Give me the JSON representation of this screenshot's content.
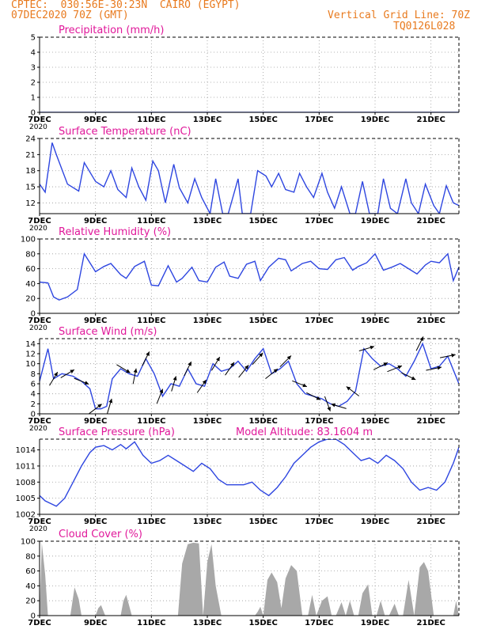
{
  "header": {
    "line1": "CPTEC:  030:56E-30:23N  CAIRO (EGYPT)",
    "line2": "07DEC2020 70Z (GMT)",
    "right1": "Vertical Grid Line: 70Z",
    "right2": "TQ0126L028"
  },
  "colors": {
    "header": "#e87a1e",
    "title": "#e0189a",
    "line": "#2e46e0",
    "cloud": "#a8a8a8",
    "axis": "#000000",
    "grid": "#9a9a9a",
    "arrow": "#000000"
  },
  "x_axis": {
    "range": [
      0,
      15
    ],
    "tick_labels": [
      "7DEC",
      "9DEC",
      "11DEC",
      "13DEC",
      "15DEC",
      "17DEC",
      "19DEC",
      "21DEC"
    ],
    "tick_days": [
      0,
      2,
      4,
      6,
      8,
      10,
      12,
      14
    ],
    "cutoff_label": "2020"
  },
  "chart_data": [
    {
      "type": "line",
      "title": "Precipitation (mm/h)",
      "ylim": [
        0,
        5
      ],
      "yticks": [
        0,
        1,
        2,
        3,
        4,
        5
      ],
      "grid": true,
      "x_days": [
        0,
        3,
        6,
        9,
        12,
        15
      ],
      "values": [
        0,
        0,
        0,
        0,
        0,
        0
      ]
    },
    {
      "type": "line",
      "title": "Surface Temperature (nC)",
      "ylim": [
        10,
        24
      ],
      "yticks": [
        12,
        15,
        18,
        21,
        24
      ],
      "grid": true,
      "x_days": [
        0,
        0.2,
        0.45,
        0.6,
        1.0,
        1.4,
        1.6,
        2.0,
        2.3,
        2.55,
        2.8,
        3.1,
        3.3,
        3.55,
        3.8,
        4.05,
        4.25,
        4.5,
        4.8,
        5.0,
        5.3,
        5.55,
        5.8,
        6.1,
        6.3,
        6.55,
        6.75,
        7.1,
        7.25,
        7.55,
        7.8,
        8.1,
        8.3,
        8.55,
        8.8,
        9.1,
        9.3,
        9.55,
        9.8,
        10.1,
        10.3,
        10.55,
        10.8,
        11.1,
        11.3,
        11.55,
        11.8,
        12.1,
        12.3,
        12.55,
        12.8,
        13.1,
        13.3,
        13.55,
        13.8,
        14.1,
        14.3,
        14.55,
        14.8,
        15.0
      ],
      "values": [
        15.5,
        14.0,
        23.2,
        21.0,
        15.5,
        14.2,
        19.5,
        16.0,
        15.0,
        18.0,
        14.5,
        13.0,
        18.5,
        15.0,
        12.5,
        19.8,
        18.0,
        12.0,
        19.2,
        14.8,
        12.0,
        16.5,
        13.0,
        10.0,
        16.5,
        10.0,
        10.0,
        16.5,
        10.0,
        10.0,
        18.0,
        17.0,
        15.0,
        17.5,
        14.5,
        14.0,
        17.5,
        15.0,
        13.0,
        17.5,
        14.0,
        11.0,
        15.0,
        10.0,
        10.0,
        16.0,
        10.0,
        10.0,
        16.5,
        11.0,
        10.0,
        16.5,
        12.0,
        10.0,
        15.5,
        11.5,
        10.0,
        15.2,
        12.0,
        11.5
      ]
    },
    {
      "type": "line",
      "title": "Relative Humidity (%)",
      "ylim": [
        0,
        100
      ],
      "yticks": [
        0,
        20,
        40,
        60,
        80,
        100
      ],
      "grid": true,
      "x_days": [
        0,
        0.3,
        0.5,
        0.7,
        1.0,
        1.35,
        1.6,
        2.0,
        2.3,
        2.55,
        2.9,
        3.1,
        3.4,
        3.75,
        4.0,
        4.25,
        4.6,
        4.9,
        5.1,
        5.45,
        5.7,
        6.0,
        6.3,
        6.6,
        6.8,
        7.1,
        7.4,
        7.7,
        7.9,
        8.2,
        8.55,
        8.8,
        9.0,
        9.4,
        9.7,
        10.0,
        10.3,
        10.6,
        10.9,
        11.2,
        11.4,
        11.7,
        12.0,
        12.3,
        12.6,
        12.9,
        13.2,
        13.5,
        13.8,
        14.0,
        14.3,
        14.6,
        14.8,
        15.0
      ],
      "values": [
        42,
        41,
        22,
        18,
        22,
        32,
        80,
        56,
        63,
        67,
        52,
        47,
        63,
        70,
        38,
        37,
        64,
        42,
        47,
        62,
        44,
        42,
        62,
        69,
        50,
        47,
        66,
        70,
        44,
        62,
        74,
        72,
        57,
        67,
        70,
        60,
        59,
        72,
        75,
        58,
        63,
        68,
        80,
        58,
        62,
        67,
        60,
        53,
        65,
        70,
        68,
        80,
        44,
        62
      ]
    },
    {
      "type": "line",
      "title": "Surface Wind (m/s)",
      "ylim": [
        0,
        15
      ],
      "yticks": [
        0,
        2,
        4,
        6,
        8,
        10,
        12,
        14
      ],
      "grid": true,
      "x_days": [
        0,
        0.3,
        0.5,
        0.8,
        1.2,
        1.5,
        1.8,
        2.0,
        2.2,
        2.4,
        2.6,
        2.9,
        3.2,
        3.5,
        3.8,
        4.1,
        4.4,
        4.7,
        5.0,
        5.3,
        5.6,
        5.9,
        6.2,
        6.5,
        6.8,
        7.1,
        7.4,
        7.7,
        8.0,
        8.3,
        8.6,
        8.9,
        9.2,
        9.5,
        9.8,
        10.1,
        10.4,
        10.7,
        11.0,
        11.3,
        11.6,
        11.9,
        12.2,
        12.5,
        12.8,
        13.1,
        13.4,
        13.7,
        14.0,
        14.3,
        14.6,
        15.0
      ],
      "values": [
        6.5,
        13.0,
        7.0,
        8.0,
        7.5,
        6.5,
        5.0,
        1.0,
        1.0,
        1.5,
        7.0,
        9.0,
        8.0,
        7.5,
        11.0,
        8.0,
        3.5,
        6.0,
        5.5,
        9.0,
        6.0,
        5.5,
        10.0,
        8.5,
        9.0,
        10.5,
        8.5,
        11.0,
        13.0,
        8.0,
        9.0,
        10.5,
        6.0,
        4.0,
        3.5,
        3.0,
        2.0,
        1.5,
        2.5,
        4.5,
        13.0,
        11.0,
        9.5,
        10.0,
        9.0,
        7.5,
        10.5,
        14.0,
        9.0,
        9.5,
        11.5,
        6.0
      ],
      "arrows": [
        {
          "day": 0.5,
          "dir": [
            0.6,
            -1.0
          ]
        },
        {
          "day": 1.0,
          "dir": [
            1.0,
            -0.6
          ]
        },
        {
          "day": 1.5,
          "dir": [
            1.0,
            0.4
          ]
        },
        {
          "day": 2.0,
          "dir": [
            0.8,
            -0.6
          ]
        },
        {
          "day": 2.5,
          "dir": [
            0.3,
            -1.0
          ]
        },
        {
          "day": 3.0,
          "dir": [
            1.0,
            0.6
          ]
        },
        {
          "day": 3.4,
          "dir": [
            0.2,
            -1.0
          ]
        },
        {
          "day": 3.8,
          "dir": [
            0.5,
            -1.0
          ]
        },
        {
          "day": 4.3,
          "dir": [
            0.4,
            -1.0
          ]
        },
        {
          "day": 4.8,
          "dir": [
            0.3,
            -1.0
          ]
        },
        {
          "day": 5.3,
          "dir": [
            0.5,
            -1.0
          ]
        },
        {
          "day": 5.8,
          "dir": [
            0.7,
            -1.0
          ]
        },
        {
          "day": 6.3,
          "dir": [
            0.6,
            -1.0
          ]
        },
        {
          "day": 6.8,
          "dir": [
            0.7,
            -1.0
          ]
        },
        {
          "day": 7.3,
          "dir": [
            0.8,
            -1.0
          ]
        },
        {
          "day": 7.8,
          "dir": [
            0.9,
            -1.0
          ]
        },
        {
          "day": 8.3,
          "dir": [
            1.0,
            -0.8
          ]
        },
        {
          "day": 8.8,
          "dir": [
            1.0,
            -1.0
          ]
        },
        {
          "day": 9.3,
          "dir": [
            1.0,
            0.4
          ]
        },
        {
          "day": 9.8,
          "dir": [
            1.0,
            0.5
          ]
        },
        {
          "day": 10.3,
          "dir": [
            0.3,
            0.8
          ]
        },
        {
          "day": 10.7,
          "dir": [
            -1.0,
            -0.3
          ]
        },
        {
          "day": 11.2,
          "dir": [
            -0.8,
            -0.6
          ]
        },
        {
          "day": 11.7,
          "dir": [
            1.0,
            -0.3
          ]
        },
        {
          "day": 12.2,
          "dir": [
            1.0,
            -0.5
          ]
        },
        {
          "day": 12.7,
          "dir": [
            1.0,
            -0.4
          ]
        },
        {
          "day": 13.2,
          "dir": [
            1.0,
            0.5
          ]
        },
        {
          "day": 13.6,
          "dir": [
            0.5,
            -1.0
          ]
        },
        {
          "day": 14.1,
          "dir": [
            1.0,
            -0.2
          ]
        },
        {
          "day": 14.6,
          "dir": [
            1.0,
            -0.2
          ]
        }
      ]
    },
    {
      "type": "line",
      "title": "Surface Pressure (hPa)",
      "annotation": "Model Altitude: 83.1604 m",
      "ylim": [
        1002,
        1016
      ],
      "yticks": [
        1002,
        1005,
        1008,
        1011,
        1014
      ],
      "grid": true,
      "x_days": [
        0,
        0.2,
        0.4,
        0.6,
        0.9,
        1.2,
        1.5,
        1.8,
        2.0,
        2.3,
        2.6,
        2.9,
        3.1,
        3.4,
        3.7,
        4.0,
        4.3,
        4.6,
        4.9,
        5.2,
        5.5,
        5.8,
        6.1,
        6.4,
        6.7,
        7.0,
        7.3,
        7.6,
        7.9,
        8.2,
        8.5,
        8.8,
        9.1,
        9.4,
        9.7,
        10.0,
        10.3,
        10.6,
        10.9,
        11.2,
        11.5,
        11.8,
        12.1,
        12.4,
        12.7,
        13.0,
        13.3,
        13.6,
        13.9,
        14.2,
        14.5,
        14.8,
        15.0
      ],
      "values": [
        1005.5,
        1004.5,
        1004.0,
        1003.5,
        1005.0,
        1008.0,
        1011.0,
        1013.5,
        1014.5,
        1014.8,
        1014.0,
        1015.0,
        1014.2,
        1015.5,
        1013.0,
        1011.5,
        1012.0,
        1013.0,
        1012.0,
        1011.0,
        1010.0,
        1011.5,
        1010.5,
        1008.5,
        1007.5,
        1007.5,
        1007.5,
        1008.0,
        1006.5,
        1005.5,
        1007.0,
        1009.0,
        1011.5,
        1013.0,
        1014.5,
        1015.5,
        1016.0,
        1016.0,
        1015.0,
        1013.5,
        1012.0,
        1012.5,
        1011.5,
        1013.0,
        1012.0,
        1010.5,
        1008.0,
        1006.5,
        1007.0,
        1006.5,
        1008.0,
        1011.5,
        1014.5
      ]
    },
    {
      "type": "area",
      "title": "Cloud Cover (%)",
      "ylim": [
        0,
        100
      ],
      "yticks": [
        0,
        20,
        40,
        60,
        80,
        100
      ],
      "grid": true,
      "x_days": [
        0,
        0.08,
        0.2,
        0.3,
        0.45,
        0.7,
        1.0,
        1.1,
        1.25,
        1.4,
        1.5,
        1.6,
        1.8,
        2.0,
        2.1,
        2.2,
        2.35,
        2.5,
        2.7,
        2.9,
        3.0,
        3.1,
        3.3,
        3.45,
        3.6,
        3.8,
        3.95,
        4.05,
        4.15,
        4.3,
        4.6,
        4.8,
        4.95,
        5.1,
        5.3,
        5.5,
        5.7,
        5.85,
        6.0,
        6.15,
        6.3,
        6.5,
        6.7,
        6.85,
        7.0,
        7.2,
        7.35,
        7.5,
        7.7,
        7.8,
        7.9,
        8.0,
        8.15,
        8.3,
        8.5,
        8.65,
        8.8,
        9.0,
        9.2,
        9.4,
        9.6,
        9.75,
        9.9,
        10.1,
        10.3,
        10.45,
        10.6,
        10.8,
        10.95,
        11.1,
        11.25,
        11.4,
        11.55,
        11.75,
        11.9,
        12.05,
        12.2,
        12.35,
        12.5,
        12.7,
        12.85,
        13.0,
        13.2,
        13.4,
        13.6,
        13.75,
        13.9,
        14.1,
        14.3,
        14.5,
        14.65,
        14.8,
        14.9,
        15.0
      ],
      "values": [
        0,
        98,
        55,
        0,
        0,
        0,
        0,
        0,
        38,
        22,
        0,
        0,
        0,
        0,
        10,
        14,
        0,
        0,
        0,
        0,
        20,
        28,
        0,
        0,
        0,
        0,
        0,
        0,
        0,
        0,
        0,
        0,
        0,
        70,
        96,
        98,
        97,
        0,
        72,
        96,
        40,
        0,
        0,
        0,
        0,
        0,
        0,
        0,
        0,
        5,
        12,
        0,
        48,
        58,
        45,
        10,
        50,
        68,
        60,
        0,
        0,
        28,
        0,
        20,
        26,
        0,
        0,
        18,
        0,
        20,
        0,
        0,
        30,
        42,
        0,
        0,
        20,
        0,
        0,
        16,
        0,
        0,
        48,
        0,
        65,
        72,
        60,
        0,
        0,
        0,
        0,
        0,
        20,
        0
      ]
    }
  ]
}
